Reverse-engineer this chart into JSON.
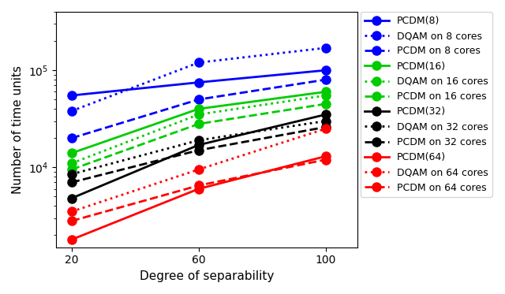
{
  "x": [
    20,
    60,
    100
  ],
  "series": [
    {
      "label": "PCDM(8)",
      "color": "#0000ff",
      "linestyle": "-",
      "marker": "o",
      "values": [
        55000,
        75000,
        100000
      ]
    },
    {
      "label": "DQAM on 8 cores",
      "color": "#0000ff",
      "linestyle": ":",
      "marker": "o",
      "values": [
        38000,
        120000,
        170000
      ]
    },
    {
      "label": "PCDM on 8 cores",
      "color": "#0000ff",
      "linestyle": "--",
      "marker": "o",
      "values": [
        20000,
        50000,
        80000
      ]
    },
    {
      "label": "PCDM(16)",
      "color": "#00cc00",
      "linestyle": "-",
      "marker": "o",
      "values": [
        14000,
        40000,
        60000
      ]
    },
    {
      "label": "DQAM on 16 cores",
      "color": "#00cc00",
      "linestyle": ":",
      "marker": "o",
      "values": [
        11000,
        35000,
        55000
      ]
    },
    {
      "label": "PCDM on 16 cores",
      "color": "#00cc00",
      "linestyle": "--",
      "marker": "o",
      "values": [
        9500,
        28000,
        45000
      ]
    },
    {
      "label": "PCDM(32)",
      "color": "#000000",
      "linestyle": "-",
      "marker": "o",
      "values": [
        4800,
        17000,
        35000
      ]
    },
    {
      "label": "DQAM on 32 cores",
      "color": "#000000",
      "linestyle": ":",
      "marker": "o",
      "values": [
        8500,
        19000,
        30000
      ]
    },
    {
      "label": "PCDM on 32 cores",
      "color": "#000000",
      "linestyle": "--",
      "marker": "o",
      "values": [
        7000,
        15000,
        26000
      ]
    },
    {
      "label": "PCDM(64)",
      "color": "#ff0000",
      "linestyle": "-",
      "marker": "o",
      "values": [
        1800,
        6000,
        13000
      ]
    },
    {
      "label": "DQAM on 64 cores",
      "color": "#ff0000",
      "linestyle": ":",
      "marker": "o",
      "values": [
        3500,
        9500,
        25000
      ]
    },
    {
      "label": "PCDM on 64 cores",
      "color": "#ff0000",
      "linestyle": "--",
      "marker": "o",
      "values": [
        2800,
        6500,
        12000
      ]
    }
  ],
  "xlabel": "Degree of separability",
  "ylabel": "Number of time units",
  "ylim": [
    1500,
    400000
  ],
  "xlim": [
    15,
    110
  ],
  "xticks": [
    20,
    60,
    100
  ],
  "background_color": "#ffffff",
  "markersize": 8,
  "linewidth": 2.0,
  "legend_fontsize": 9
}
